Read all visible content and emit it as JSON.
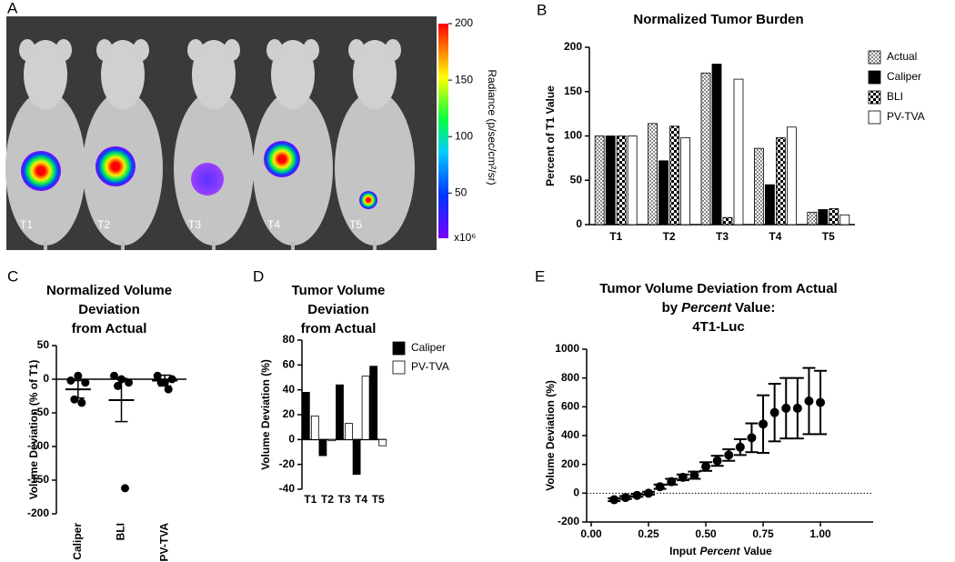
{
  "chart_data": [
    {
      "type": "image",
      "panel_label": "A",
      "labels": [
        "T1",
        "T2",
        "T3",
        "T4",
        "T5"
      ],
      "colorbar": {
        "label": "Radiance (p/sec/cm²/sr)",
        "lim": [
          10,
          200
        ],
        "ticks": [
          50,
          100,
          150,
          200
        ],
        "unit_label": "x10⁶"
      }
    },
    {
      "type": "bar",
      "panel_label": "B",
      "title": [
        "Normalized Tumor Burden"
      ],
      "ylabel": "Percent of T1 Value",
      "categories": [
        "T1",
        "T2",
        "T3",
        "T4",
        "T5"
      ],
      "series": [
        {
          "name": "Actual",
          "color": "#888888",
          "pattern": "fine-checker",
          "values": [
            100,
            114,
            171,
            86,
            14
          ]
        },
        {
          "name": "Caliper",
          "color": "#000000",
          "pattern": "solid",
          "values": [
            100,
            72,
            181,
            45,
            17
          ]
        },
        {
          "name": "BLI",
          "color": "#000000",
          "pattern": "bold-checker",
          "values": [
            100,
            111,
            8,
            98,
            18
          ]
        },
        {
          "name": "PV-TVA",
          "color": "#ffffff",
          "pattern": "solid",
          "values": [
            100,
            98,
            164,
            110,
            11
          ]
        }
      ],
      "ylim": [
        0,
        200
      ],
      "yticks": [
        0,
        50,
        100,
        150,
        200
      ],
      "legend": "right",
      "grid": false
    },
    {
      "type": "dot",
      "panel_label": "C",
      "title": [
        "Normalized Volume",
        "Deviation",
        "from Actual"
      ],
      "ylabel": "Volume Deviation (% of T1)",
      "categories": [
        "Caliper",
        "BLI",
        "PV-TVA"
      ],
      "points": [
        [
          -2,
          5,
          -5,
          -30,
          -35
        ],
        [
          5,
          0,
          -5,
          -10,
          -162
        ],
        [
          5,
          -5,
          0,
          -5,
          -15
        ]
      ],
      "means": [
        -15,
        -31,
        -2
      ],
      "errors": [
        13,
        32,
        8
      ],
      "ylim": [
        -200,
        50
      ],
      "yticks": [
        -200,
        -150,
        -100,
        -50,
        0,
        50
      ],
      "grid": false
    },
    {
      "type": "bar",
      "panel_label": "D",
      "title": [
        "Tumor Volume",
        "Deviation",
        "from Actual"
      ],
      "ylabel": "Volume Deviation (%)",
      "categories": [
        "T1",
        "T2",
        "T3",
        "T4",
        "T5"
      ],
      "series": [
        {
          "name": "Caliper",
          "color": "#000000",
          "pattern": "solid",
          "values": [
            38,
            -13,
            44,
            -28,
            59
          ]
        },
        {
          "name": "PV-TVA",
          "color": "#ffffff",
          "pattern": "solid",
          "values": [
            19,
            -1,
            13,
            51,
            -5
          ]
        }
      ],
      "ylim": [
        -40,
        80
      ],
      "yticks": [
        -40,
        -20,
        0,
        20,
        40,
        60,
        80
      ],
      "legend": "right",
      "grid": false
    },
    {
      "type": "errorscatter",
      "panel_label": "E",
      "title": [
        "Tumor Volume Deviation from Actual",
        "by",
        "Percent",
        "Value:",
        "4T1-Luc"
      ],
      "xlabel": [
        "Input",
        "Percent",
        "Value"
      ],
      "ylabel": "Volume Deviation (%)",
      "x": [
        0.1,
        0.15,
        0.2,
        0.25,
        0.3,
        0.35,
        0.4,
        0.45,
        0.5,
        0.55,
        0.6,
        0.65,
        0.7,
        0.75,
        0.8,
        0.85,
        0.9,
        0.95,
        1.0
      ],
      "values": [
        -45,
        -30,
        -15,
        0,
        45,
        80,
        110,
        125,
        185,
        225,
        265,
        320,
        385,
        480,
        560,
        590,
        590,
        640,
        630
      ],
      "errors": [
        10,
        10,
        10,
        10,
        15,
        20,
        20,
        25,
        30,
        35,
        40,
        55,
        100,
        200,
        200,
        210,
        210,
        230,
        220
      ],
      "ref_line": 0,
      "xlim": [
        -0.02,
        1.23
      ],
      "xticks": [
        {
          "value": 0,
          "label": "0.00"
        },
        0.25,
        {
          "value": 0.5,
          "label": "0.50"
        },
        0.75,
        {
          "value": 1,
          "label": "1.00"
        }
      ],
      "ylim": [
        -200,
        1000
      ],
      "yticks": [
        -200,
        0,
        200,
        400,
        600,
        800,
        1000
      ],
      "grid": false
    }
  ]
}
